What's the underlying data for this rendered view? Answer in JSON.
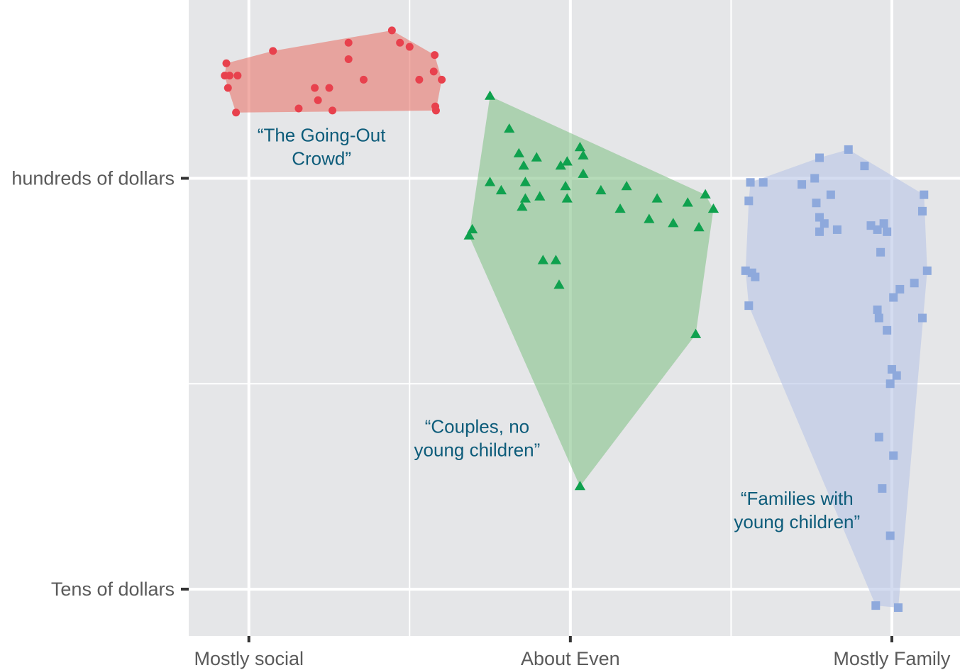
{
  "chart_data": {
    "type": "scatter",
    "title": "",
    "xlabel": "",
    "ylabel": "",
    "x_ticks": [
      {
        "value": 0,
        "label": "Mostly social"
      },
      {
        "value": 1,
        "label": "About Even"
      },
      {
        "value": 2,
        "label": "Mostly Family"
      }
    ],
    "y_ticks": [
      {
        "value": 0,
        "label": "Tens of dollars"
      },
      {
        "value": 1,
        "label": "hundreds of dollars"
      }
    ],
    "xlim": [
      -0.187,
      2.212
    ],
    "ylim": [
      -0.114,
      1.434
    ],
    "grid": true,
    "hulls": true,
    "colors": {
      "panel": "#e5e6e8",
      "grid": "#ffffff",
      "axis_tick": "#333333"
    },
    "series": [
      {
        "shape": "circle",
        "color": "#e8414d",
        "fill": "#e8776d",
        "annotation": {
          "lines": [
            "“The Going-Out",
            "Crowd”"
          ],
          "x": 0.226,
          "y": 1.09
        },
        "points": [
          [
            -0.07,
            1.28
          ],
          [
            -0.075,
            1.25
          ],
          [
            -0.06,
            1.25
          ],
          [
            -0.065,
            1.22
          ],
          [
            -0.035,
            1.25
          ],
          [
            -0.04,
            1.16
          ],
          [
            0.075,
            1.31
          ],
          [
            0.155,
            1.17
          ],
          [
            0.205,
            1.22
          ],
          [
            0.215,
            1.19
          ],
          [
            0.25,
            1.22
          ],
          [
            0.26,
            1.165
          ],
          [
            0.31,
            1.33
          ],
          [
            0.31,
            1.29
          ],
          [
            0.357,
            1.24
          ],
          [
            0.445,
            1.36
          ],
          [
            0.47,
            1.33
          ],
          [
            0.5,
            1.32
          ],
          [
            0.53,
            1.24
          ],
          [
            0.575,
            1.26
          ],
          [
            0.578,
            1.3
          ],
          [
            0.582,
            1.165
          ],
          [
            0.58,
            1.175
          ],
          [
            0.6,
            1.24
          ]
        ]
      },
      {
        "shape": "triangle",
        "color": "#0fa14e",
        "fill": "#86c38a",
        "annotation": {
          "lines": [
            "“Couples, no",
            "young children”"
          ],
          "x": 0.71,
          "y": 0.38
        },
        "points": [
          [
            0.75,
            1.2
          ],
          [
            0.81,
            1.12
          ],
          [
            0.84,
            1.06
          ],
          [
            0.895,
            1.05
          ],
          [
            0.855,
            1.03
          ],
          [
            0.97,
            1.03
          ],
          [
            0.99,
            1.04
          ],
          [
            1.03,
            1.075
          ],
          [
            1.04,
            1.055
          ],
          [
            1.04,
            1.01
          ],
          [
            0.75,
            0.99
          ],
          [
            0.785,
            0.97
          ],
          [
            0.86,
            0.99
          ],
          [
            0.985,
            0.98
          ],
          [
            0.86,
            0.95
          ],
          [
            0.905,
            0.955
          ],
          [
            0.85,
            0.93
          ],
          [
            0.99,
            0.95
          ],
          [
            1.095,
            0.97
          ],
          [
            1.175,
            0.98
          ],
          [
            1.155,
            0.925
          ],
          [
            1.27,
            0.95
          ],
          [
            1.365,
            0.94
          ],
          [
            1.42,
            0.96
          ],
          [
            1.445,
            0.925
          ],
          [
            1.245,
            0.9
          ],
          [
            1.32,
            0.89
          ],
          [
            1.4,
            0.88
          ],
          [
            0.695,
            0.875
          ],
          [
            0.685,
            0.86
          ],
          [
            0.915,
            0.8
          ],
          [
            0.955,
            0.8
          ],
          [
            0.965,
            0.74
          ],
          [
            1.39,
            0.62
          ],
          [
            1.03,
            0.25
          ]
        ]
      },
      {
        "shape": "square",
        "color": "#8ea9dc",
        "fill": "#b8c5e6",
        "annotation": {
          "lines": [
            "“Families with",
            "young children”"
          ],
          "x": 1.705,
          "y": 0.205
        },
        "points": [
          [
            1.775,
            1.05
          ],
          [
            1.865,
            1.07
          ],
          [
            1.915,
            1.03
          ],
          [
            1.76,
            1.0
          ],
          [
            1.56,
            0.99
          ],
          [
            1.6,
            0.99
          ],
          [
            1.72,
            0.985
          ],
          [
            1.81,
            0.96
          ],
          [
            1.765,
            0.94
          ],
          [
            1.555,
            0.945
          ],
          [
            2.1,
            0.96
          ],
          [
            2.095,
            0.92
          ],
          [
            1.775,
            0.905
          ],
          [
            1.79,
            0.89
          ],
          [
            1.83,
            0.875
          ],
          [
            1.935,
            0.885
          ],
          [
            1.955,
            0.875
          ],
          [
            1.975,
            0.89
          ],
          [
            1.985,
            0.87
          ],
          [
            1.775,
            0.87
          ],
          [
            1.965,
            0.82
          ],
          [
            1.545,
            0.775
          ],
          [
            1.565,
            0.77
          ],
          [
            1.575,
            0.76
          ],
          [
            2.11,
            0.775
          ],
          [
            2.07,
            0.745
          ],
          [
            2.025,
            0.73
          ],
          [
            2.005,
            0.71
          ],
          [
            1.955,
            0.68
          ],
          [
            1.555,
            0.69
          ],
          [
            1.96,
            0.66
          ],
          [
            2.095,
            0.66
          ],
          [
            1.985,
            0.63
          ],
          [
            2.0,
            0.535
          ],
          [
            2.015,
            0.52
          ],
          [
            1.995,
            0.5
          ],
          [
            1.96,
            0.37
          ],
          [
            2.005,
            0.325
          ],
          [
            1.97,
            0.245
          ],
          [
            1.995,
            0.13
          ],
          [
            1.95,
            -0.04
          ],
          [
            2.02,
            -0.045
          ]
        ]
      }
    ]
  }
}
